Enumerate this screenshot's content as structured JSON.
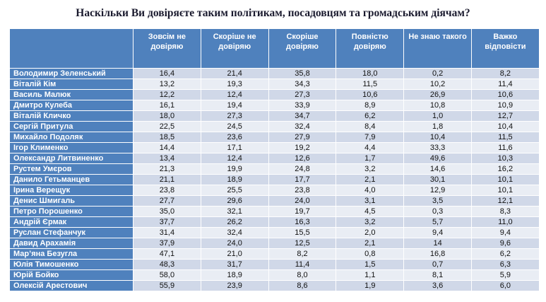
{
  "title": "Наскільки Ви довіряєте таким політикам, посадовцям та громадським діячам?",
  "chart_data": {
    "type": "table",
    "title": "Наскільки Ви довіряєте таким політикам, посадовцям та громадським діячам?",
    "columns": [
      "",
      "Зовсім не довіряю",
      "Скоріше не довіряю",
      "Скоріше довіряю",
      "Повністю довіряю",
      "Не знаю такого",
      "Важко відповісти"
    ],
    "rows": [
      {
        "name": "Володимир Зеленський",
        "values": [
          "16,4",
          "21,4",
          "35,8",
          "18,0",
          "0,2",
          "8,2"
        ]
      },
      {
        "name": "Віталій Кім",
        "values": [
          "13,2",
          "19,3",
          "34,3",
          "11,5",
          "10,2",
          "11,4"
        ]
      },
      {
        "name": "Василь Малюк",
        "values": [
          "12,2",
          "12,4",
          "27,3",
          "10,6",
          "26,9",
          "10,6"
        ]
      },
      {
        "name": "Дмитро Кулеба",
        "values": [
          "16,1",
          "19,4",
          "33,9",
          "8,9",
          "10,8",
          "10,9"
        ]
      },
      {
        "name": "Віталій Кличко",
        "values": [
          "18,0",
          "27,3",
          "34,7",
          "6,2",
          "1,0",
          "12,7"
        ]
      },
      {
        "name": "Сергій Притула",
        "values": [
          "22,5",
          "24,5",
          "32,4",
          "8,4",
          "1,8",
          "10,4"
        ]
      },
      {
        "name": "Михайло Подоляк",
        "values": [
          "18,5",
          "23,6",
          "27,9",
          "7,9",
          "10,4",
          "11,5"
        ]
      },
      {
        "name": "Ігор Клименко",
        "values": [
          "14,4",
          "17,1",
          "19,2",
          "4,4",
          "33,3",
          "11,6"
        ]
      },
      {
        "name": "Олександр Литвиненко",
        "values": [
          "13,4",
          "12,4",
          "12,6",
          "1,7",
          "49,6",
          "10,3"
        ]
      },
      {
        "name": "Рустем Умєров",
        "values": [
          "21,3",
          "19,9",
          "24,8",
          "3,2",
          "14,6",
          "16,2"
        ]
      },
      {
        "name": "Данило Гетьманцев",
        "values": [
          "21,1",
          "18,9",
          "17,7",
          "2,1",
          "30,1",
          "10,1"
        ]
      },
      {
        "name": "Ірина Верещук",
        "values": [
          "23,8",
          "25,5",
          "23,8",
          "4,0",
          "12,9",
          "10,1"
        ]
      },
      {
        "name": "Денис Шмигаль",
        "values": [
          "27,7",
          "29,6",
          "24,0",
          "3,1",
          "3,5",
          "12,1"
        ]
      },
      {
        "name": "Петро Порошенко",
        "values": [
          "35,0",
          "32,1",
          "19,7",
          "4,5",
          "0,3",
          "8,3"
        ]
      },
      {
        "name": "Андрій Єрмак",
        "values": [
          "37,7",
          "26,2",
          "16,3",
          "3,2",
          "5,7",
          "11,0"
        ]
      },
      {
        "name": "Руслан Стефанчук",
        "values": [
          "31,4",
          "32,4",
          "15,5",
          "2,0",
          "9,4",
          "9,4"
        ]
      },
      {
        "name": "Давид Арахамія",
        "values": [
          "37,9",
          "24,0",
          "12,5",
          "2,1",
          "14",
          "9,6"
        ]
      },
      {
        "name": "Мар’яна Безугла",
        "values": [
          "47,1",
          "21,0",
          "8,2",
          "0,8",
          "16,8",
          "6,2"
        ]
      },
      {
        "name": "Юлія Тимошенко",
        "values": [
          "48,3",
          "31,7",
          "11,4",
          "1,5",
          "0,7",
          "6,3"
        ]
      },
      {
        "name": "Юрій Бойко",
        "values": [
          "58,0",
          "18,9",
          "8,0",
          "1,1",
          "8,1",
          "5,9"
        ]
      },
      {
        "name": "Олексій Арестович",
        "values": [
          "55,9",
          "23,9",
          "8,6",
          "1,9",
          "3,6",
          "6,0"
        ]
      }
    ]
  },
  "colors": {
    "header_bg": "#4f81bd",
    "row_odd": "#d0d8e8",
    "row_even": "#e9edf4"
  }
}
